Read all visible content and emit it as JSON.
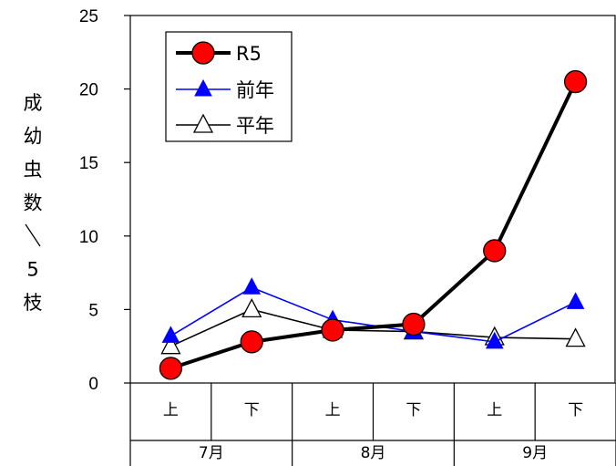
{
  "chart_data": {
    "type": "line",
    "ylabel": "成幼虫数／5枝",
    "ylim": [
      0,
      25
    ],
    "yticks": [
      "0",
      "5",
      "10",
      "15",
      "20",
      "25"
    ],
    "categories": [
      "上",
      "下",
      "上",
      "下",
      "上",
      "下"
    ],
    "groups": [
      "7月",
      "8月",
      "9月"
    ],
    "grid": false,
    "legend_position": "top-left",
    "series": [
      {
        "name": "R5",
        "values": [
          1.0,
          2.8,
          3.6,
          4.0,
          9.0,
          20.5
        ],
        "color": "#000000",
        "marker_fill": "#ff0000",
        "marker": "circle"
      },
      {
        "name": "前年",
        "values": [
          3.2,
          6.5,
          4.3,
          3.5,
          2.8,
          5.5
        ],
        "color": "#0000ff",
        "marker_fill": "#0000ff",
        "marker": "filled-triangle"
      },
      {
        "name": "平年",
        "values": [
          2.5,
          5.0,
          3.6,
          3.5,
          3.1,
          3.0
        ],
        "color": "#000000",
        "marker_fill": "#ffffff",
        "marker": "open-triangle"
      }
    ]
  }
}
